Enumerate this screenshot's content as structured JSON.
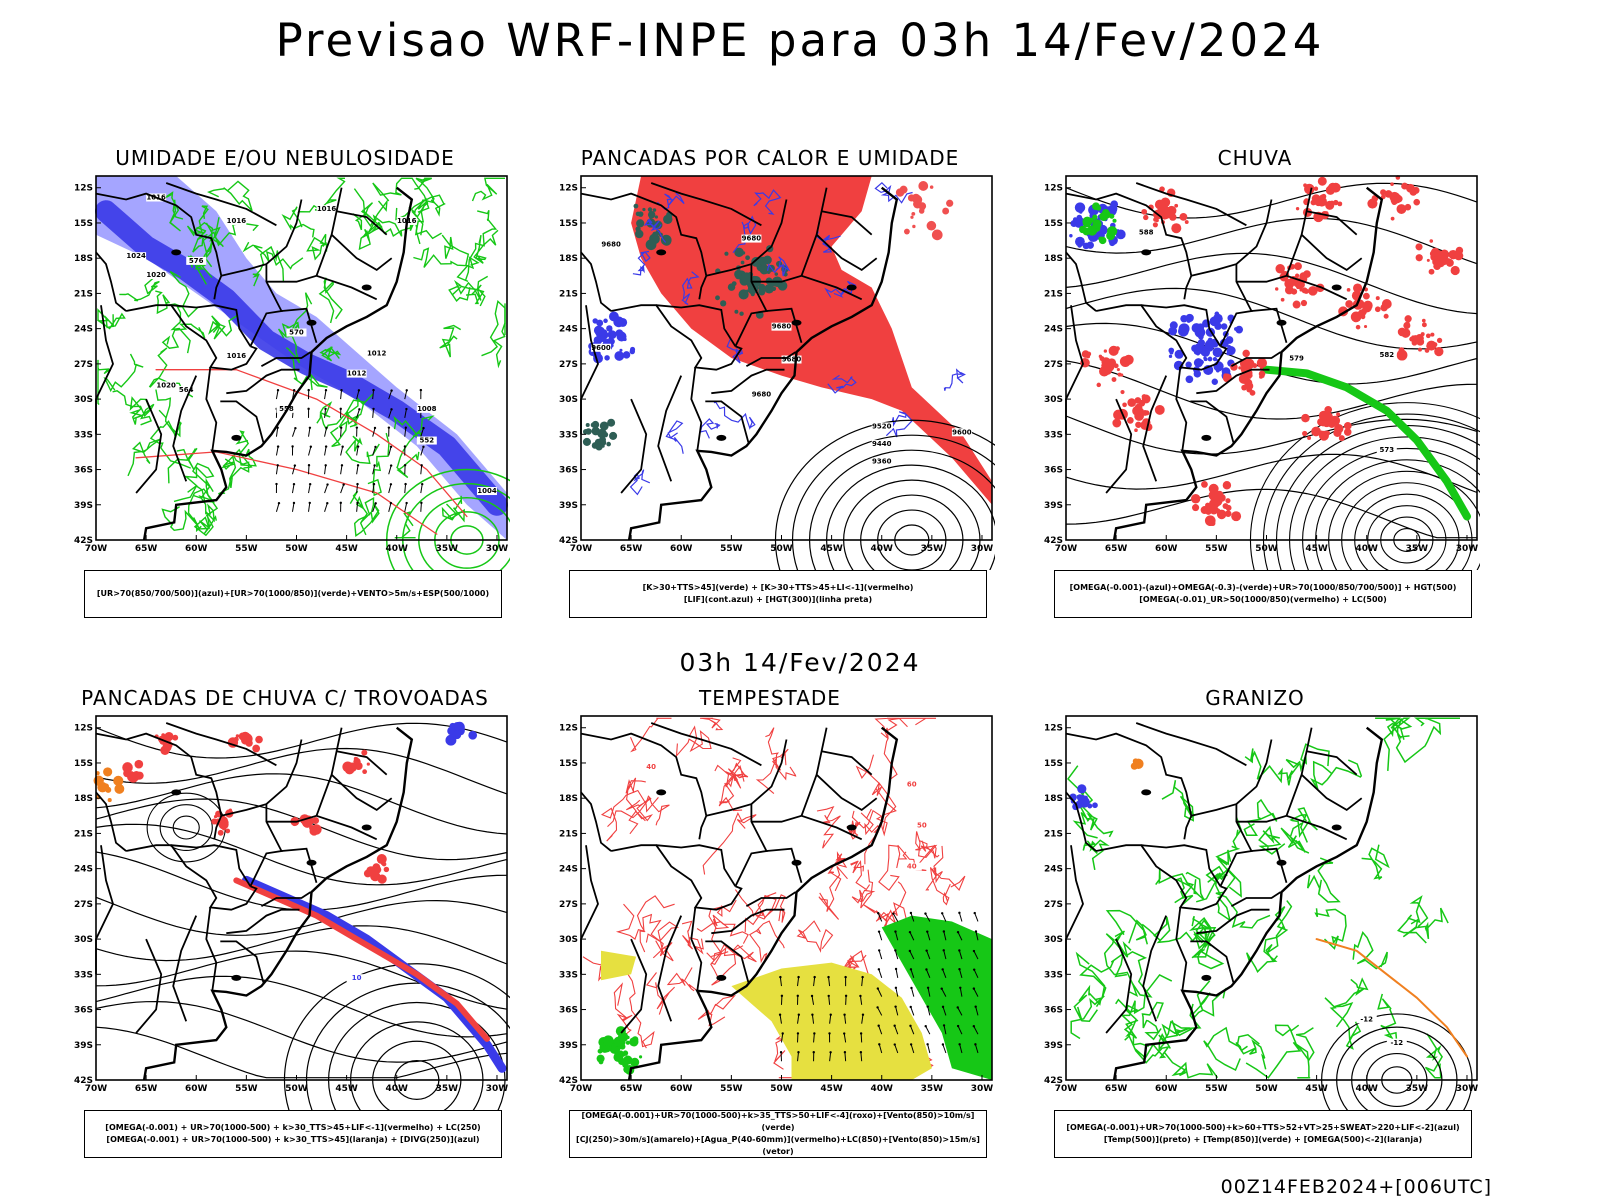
{
  "title": "Previsao WRF-INPE  para 03h 14/Fev/2024",
  "middle_title": "03h 14/Fev/2024",
  "footer": "00Z14FEB2024+[006UTC]",
  "axes": {
    "lat_labels": [
      "12S",
      "15S",
      "18S",
      "21S",
      "24S",
      "27S",
      "30S",
      "33S",
      "36S",
      "39S",
      "42S"
    ],
    "lon_labels": [
      "70W",
      "65W",
      "60W",
      "55W",
      "50W",
      "45W",
      "40W",
      "35W",
      "30W"
    ]
  },
  "colors": {
    "blue": "#3a3ae8",
    "lightblue": "#9b9bff",
    "green": "#16c716",
    "red": "#f04040",
    "darkteal": "#2e5e55",
    "yellow": "#e6e040",
    "orange": "#f08020",
    "black": "#000000"
  },
  "panels": [
    {
      "title": "UMIDADE E/OU NEBULOSIDADE",
      "caption_lines": [
        "[UR>70(850/700/500)](azul)+[UR>70(1000/850)](verde)+VENTO>5m/s+ESP(500/1000)"
      ],
      "contour_labels": [
        "1016",
        "1016",
        "1016",
        "1016",
        "1024",
        "1020",
        "1012",
        "1016",
        "1020",
        "1012",
        "1008",
        "1004",
        "576",
        "570",
        "564",
        "558",
        "552"
      ]
    },
    {
      "title": "PANCADAS POR CALOR E UMIDADE",
      "caption_lines": [
        "[K>30+TTS>45](verde) + [K>30+TTS>45+LI<-1](vermelho)",
        "[LIF](cont.azul) + [HGT(300)](linha preta)"
      ],
      "contour_labels": [
        "9680",
        "9680",
        "9680",
        "9680",
        "9680",
        "9600",
        "9520",
        "9440",
        "9360",
        "9600"
      ]
    },
    {
      "title": "CHUVA",
      "caption_lines": [
        "[OMEGA(-0.001)-(azul)+OMEGA(-0.3)-(verde)+UR>70(1000/850/700/500)] + HGT(500)",
        "[OMEGA(-0.01)_UR>50(1000/850)(vermelho) + LC(500)"
      ],
      "contour_labels": [
        "588",
        "582",
        "579",
        "573"
      ]
    },
    {
      "title": "PANCADAS DE CHUVA C/ TROVOADAS",
      "caption_lines": [
        "[OMEGA(-0.001) + UR>70(1000-500) + k>30_TTS>45+LIF<-1](vermelho) + LC(250)",
        "[OMEGA(-0.001) + UR>70(1000-500) + k>30_TTS>45](laranja) + [DIVG(250)](azul)"
      ],
      "contour_labels": [
        "10"
      ]
    },
    {
      "title": "TEMPESTADE",
      "caption_lines": [
        "[OMEGA(-0.001)+UR>70(1000-500)+k>35_TTS>50+LIF<-4](roxo)+[Vento(850)>10m/s](verde)",
        "[CJ(250)>30m/s](amarelo)+[Agua_P(40-60mm)](vermelho)+LC(850)+[Vento(850)>15m/s](vetor)"
      ],
      "contour_labels": [
        "40",
        "60",
        "50",
        "40"
      ]
    },
    {
      "title": "GRANIZO",
      "caption_lines": [
        "[OMEGA(-0.001)+UR>70(1000-500)+k>60+TTS>52+VT>25+SWEAT>220+LIF<-2](azul)",
        "[Temp(500)](preto) + [Temp(850)](verde) + [OMEGA(500)<-2](laranja)"
      ],
      "contour_labels": [
        "-12",
        "-12"
      ]
    }
  ]
}
